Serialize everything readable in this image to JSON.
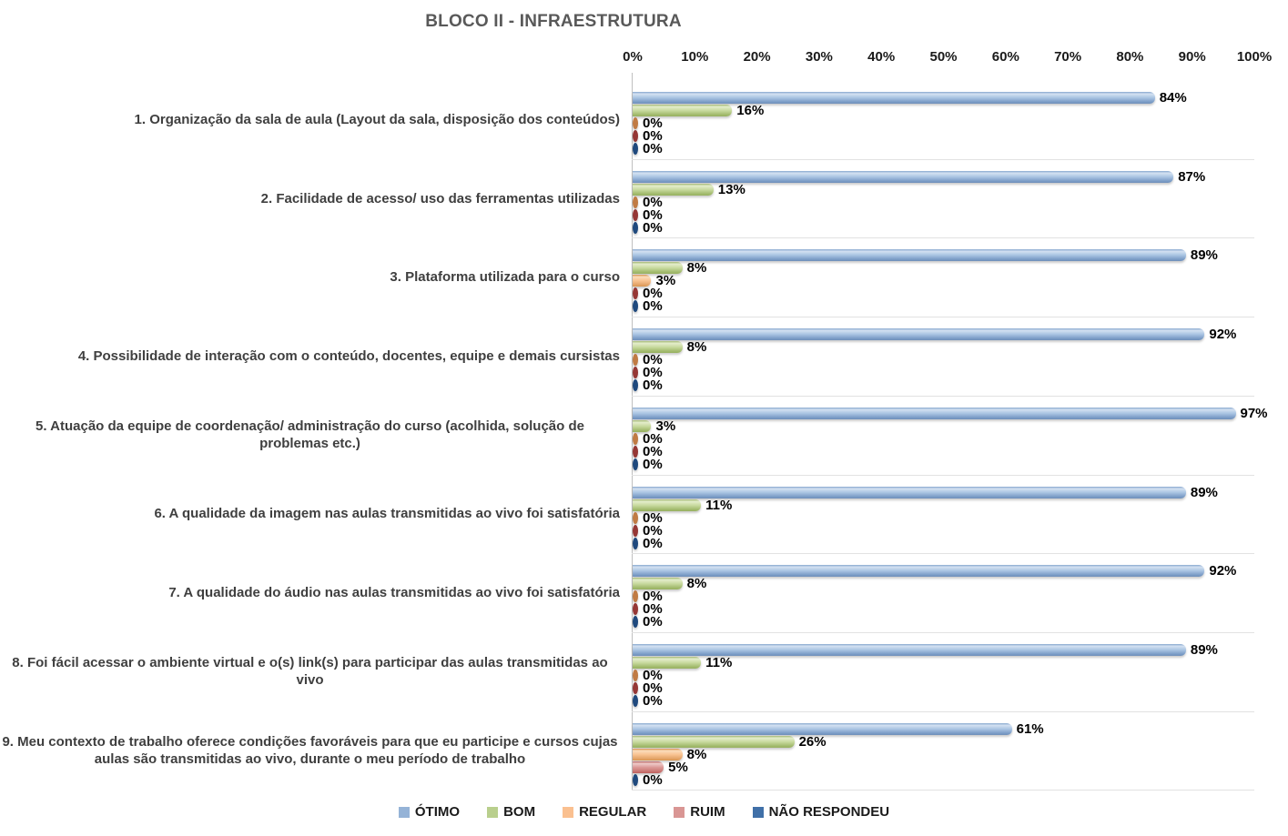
{
  "chart_data": {
    "type": "bar",
    "orientation": "horizontal",
    "title": "BLOCO II - INFRAESTRUTURA",
    "title_color": "#595959",
    "categories": [
      "1. Organização da sala de aula (Layout da sala, disposição dos conteúdos)",
      "2. Facilidade de acesso/ uso das ferramentas utilizadas",
      "3. Plataforma utilizada para o curso",
      "4. Possibilidade de interação com o conteúdo, docentes, equipe e demais cursistas",
      "5. Atuação da equipe de coordenação/ administração do curso (acolhida, solução de problemas etc.)",
      "6. A qualidade da imagem nas aulas transmitidas ao vivo foi satisfatória",
      "7. A qualidade do áudio nas aulas transmitidas ao vivo foi satisfatória",
      "8. Foi fácil acessar o ambiente virtual e o(s) link(s) para participar das aulas transmitidas ao vivo",
      "9. Meu contexto de trabalho oferece condições favoráveis para que eu participe e cursos cujas aulas são transmitidas ao vivo, durante o meu período de trabalho"
    ],
    "series": [
      {
        "name": "ÓTIMO",
        "color": "#95B3D7",
        "cap_color": "#6d8cb8",
        "values": [
          84,
          87,
          89,
          92,
          97,
          89,
          92,
          89,
          61
        ]
      },
      {
        "name": "BOM",
        "color": "#B9CF8D",
        "cap_color": "#94ad5a",
        "values": [
          16,
          13,
          8,
          8,
          3,
          11,
          8,
          11,
          26
        ]
      },
      {
        "name": "REGULAR",
        "color": "#FAC090",
        "cap_color": "#c07b44",
        "values": [
          0,
          0,
          3,
          0,
          0,
          0,
          0,
          0,
          8
        ]
      },
      {
        "name": "RUIM",
        "color": "#D99694",
        "cap_color": "#953735",
        "values": [
          0,
          0,
          0,
          0,
          0,
          0,
          0,
          0,
          5
        ]
      },
      {
        "name": "NÃO RESPONDEU",
        "color": "#4070A8",
        "cap_color": "#1f497d",
        "values": [
          0,
          0,
          0,
          0,
          0,
          0,
          0,
          0,
          0
        ]
      }
    ],
    "value_suffix": "%",
    "x_axis": {
      "min": 0,
      "max": 100,
      "ticks": [
        "0%",
        "10%",
        "20%",
        "30%",
        "40%",
        "50%",
        "60%",
        "70%",
        "80%",
        "90%",
        "100%"
      ]
    },
    "legend_position": "bottom",
    "grid": "horizontal category separators, light gray"
  }
}
